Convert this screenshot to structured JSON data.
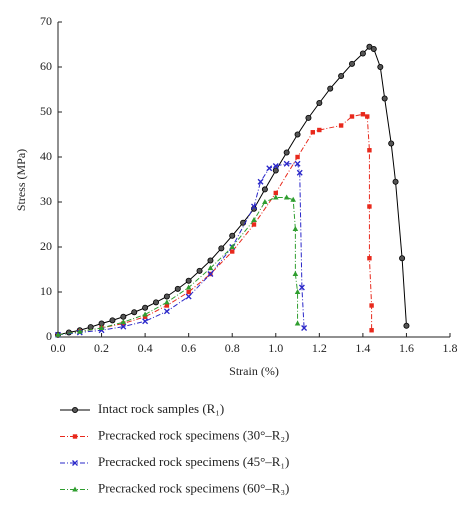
{
  "chart_data": {
    "type": "line",
    "xlabel": "Strain (%)",
    "ylabel": "Stress (MPa)",
    "xlim": [
      0,
      1.8
    ],
    "xticks": [
      {
        "value": 0,
        "label": "0.0"
      },
      0.2,
      0.4,
      0.6,
      0.8,
      {
        "value": 1,
        "label": "1.0"
      },
      1.2,
      1.4,
      1.6,
      1.8
    ],
    "ylim": [
      0,
      70
    ],
    "yticks": [
      0,
      10,
      20,
      30,
      40,
      50,
      60,
      70
    ],
    "series": [
      {
        "name": "Intact rock samples (R₁)",
        "color": "#000000",
        "marker": "circle",
        "linestyle": "solid",
        "x": [
          0,
          0.05,
          0.1,
          0.15,
          0.2,
          0.25,
          0.3,
          0.35,
          0.4,
          0.45,
          0.5,
          0.55,
          0.6,
          0.65,
          0.7,
          0.75,
          0.8,
          0.85,
          0.9,
          0.95,
          1.0,
          1.05,
          1.1,
          1.15,
          1.2,
          1.25,
          1.3,
          1.35,
          1.4,
          1.43,
          1.45,
          1.48,
          1.5,
          1.53,
          1.55,
          1.58,
          1.6
        ],
        "values": [
          0.5,
          1,
          1.5,
          2.2,
          3,
          3.7,
          4.5,
          5.5,
          6.5,
          7.7,
          9,
          10.7,
          12.5,
          14.7,
          17,
          19.7,
          22.5,
          25.4,
          28.5,
          32.8,
          37,
          41,
          45,
          48.7,
          52,
          55.2,
          58,
          60.7,
          63,
          64.5,
          64,
          60,
          53,
          43,
          34.5,
          17.5,
          2.5
        ]
      },
      {
        "name": "Precracked rock specimens (30°–R₂)",
        "color": "#e8291c",
        "marker": "square",
        "linestyle": "dashdot",
        "x": [
          0,
          0.1,
          0.2,
          0.3,
          0.4,
          0.5,
          0.6,
          0.7,
          0.8,
          0.9,
          1.0,
          1.1,
          1.17,
          1.2,
          1.3,
          1.35,
          1.4,
          1.42,
          1.43,
          1.43,
          1.43,
          1.44,
          1.44
        ],
        "values": [
          0.5,
          1.2,
          2,
          3,
          4.5,
          7,
          10,
          14,
          19,
          25,
          32,
          40,
          45.5,
          46,
          47,
          49,
          49.5,
          49,
          41.5,
          29,
          17.5,
          7,
          1.5
        ]
      },
      {
        "name": "Precracked rock specimens (45°–R₁)",
        "color": "#2a27c9",
        "marker": "x",
        "linestyle": "dashdot",
        "x": [
          0,
          0.1,
          0.2,
          0.3,
          0.4,
          0.5,
          0.6,
          0.7,
          0.8,
          0.9,
          0.93,
          0.97,
          1.0,
          1.05,
          1.1,
          1.11,
          1.12,
          1.13
        ],
        "values": [
          0.5,
          1,
          1.5,
          2.3,
          3.5,
          5.7,
          9,
          14,
          20,
          29,
          34.5,
          37.5,
          38,
          38.5,
          38.5,
          36.5,
          11,
          2
        ]
      },
      {
        "name": "Precracked rock specimens (60°–R₃)",
        "color": "#2f9e2f",
        "marker": "triangle",
        "linestyle": "dashdot",
        "x": [
          0,
          0.1,
          0.2,
          0.3,
          0.4,
          0.5,
          0.6,
          0.7,
          0.8,
          0.9,
          0.95,
          1.0,
          1.05,
          1.08,
          1.09,
          1.09,
          1.1,
          1.1
        ],
        "values": [
          0.5,
          1.2,
          2,
          3.3,
          5,
          7.7,
          11,
          15.3,
          20,
          26,
          30,
          31,
          31,
          30.5,
          24,
          14,
          10,
          3
        ]
      }
    ]
  }
}
